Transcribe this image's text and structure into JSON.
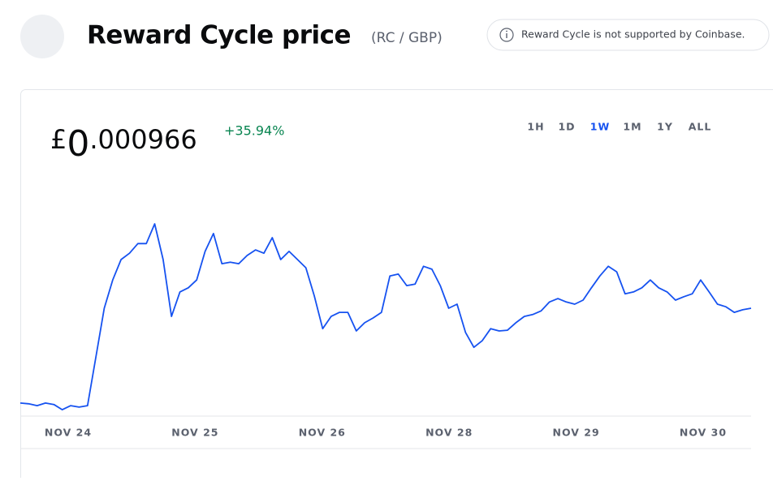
{
  "header": {
    "title": "Reward Cycle price",
    "pair": "(RC / GBP)",
    "notice": "Reward Cycle is not supported by Coinbase."
  },
  "price": {
    "currency": "£",
    "whole": "0",
    "fraction": ".000966",
    "change": "+35.94%"
  },
  "timeframes": {
    "options": [
      "1H",
      "1D",
      "1W",
      "1M",
      "1Y",
      "ALL"
    ],
    "selected": 2
  },
  "chart_data": {
    "type": "line",
    "color": "#1652f0",
    "x_labels": [
      "NOV 24",
      "NOV 25",
      "NOV 26",
      "NOV 28",
      "NOV 29",
      "NOV 30"
    ],
    "ylim": [
      0.000678,
      0.001228
    ],
    "values": [
      0.000711,
      0.000709,
      0.000704,
      0.000711,
      0.000707,
      0.000693,
      0.000704,
      0.0007,
      0.000704,
      0.000835,
      0.000966,
      0.001042,
      0.001097,
      0.001114,
      0.00114,
      0.00114,
      0.001193,
      0.001097,
      0.000944,
      0.00101,
      0.001021,
      0.001042,
      0.001119,
      0.001167,
      0.001086,
      0.00109,
      0.001086,
      0.001108,
      0.001123,
      0.001114,
      0.001156,
      0.001097,
      0.001119,
      0.001097,
      0.001075,
      0.000999,
      0.000911,
      0.000944,
      0.000955,
      0.000955,
      0.000905,
      0.000927,
      0.00094,
      0.000955,
      0.001053,
      0.001058,
      0.001027,
      0.001031,
      0.001079,
      0.001071,
      0.001027,
      0.000966,
      0.000977,
      0.000901,
      0.000861,
      0.000879,
      0.000911,
      0.000905,
      0.000907,
      0.000927,
      0.000944,
      0.000949,
      0.000959,
      0.000983,
      0.000992,
      0.000983,
      0.000977,
      0.000988,
      0.001021,
      0.001053,
      0.001079,
      0.001064,
      0.001005,
      0.00101,
      0.001021,
      0.001042,
      0.001021,
      0.00101,
      0.000988,
      0.000997,
      0.001005,
      0.001042,
      0.00101,
      0.000977,
      0.00097,
      0.000955,
      0.000962,
      0.000966
    ]
  }
}
